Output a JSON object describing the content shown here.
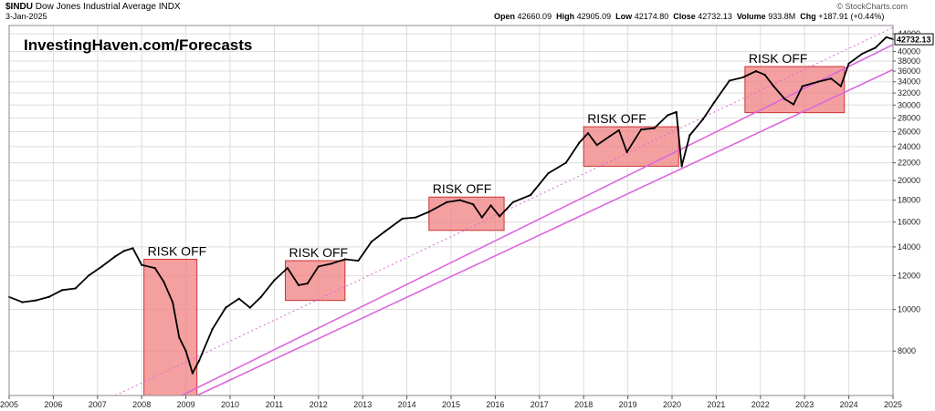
{
  "header": {
    "symbol": "$INDU",
    "name": "Dow Jones Industrial Average",
    "exchange": "INDX",
    "date": "3-Jan-2025",
    "open_label": "Open",
    "open": "42660.09",
    "high_label": "High",
    "high": "42905.09",
    "low_label": "Low",
    "low": "42174.80",
    "close_label": "Close",
    "close": "42732.13",
    "volume_label": "Volume",
    "volume": "933.8M",
    "chg_label": "Chg",
    "chg": "+187.91 (+0.44%)",
    "credit": "© StockCharts.com"
  },
  "watermark": "InvestingHaven.com/Forecasts",
  "colors": {
    "risk_fill": "#f08080",
    "risk_stroke": "#cc3333",
    "trendline": "#dd66dd",
    "candle": "#000000",
    "grid": "#dddddd"
  },
  "chart_data": {
    "type": "line",
    "title": "$INDU Dow Jones Industrial Average INDX",
    "yscale": "log",
    "xlim": [
      2005,
      2025
    ],
    "ylim": [
      6300,
      46000
    ],
    "x_ticks": [
      "2005",
      "2006",
      "2007",
      "2008",
      "2009",
      "2010",
      "2011",
      "2012",
      "2013",
      "2014",
      "2015",
      "2016",
      "2017",
      "2018",
      "2019",
      "2020",
      "2021",
      "2022",
      "2023",
      "2024",
      "2025"
    ],
    "y_ticks": [
      8000,
      10000,
      12000,
      14000,
      16000,
      18000,
      20000,
      22000,
      24000,
      26000,
      28000,
      30000,
      32000,
      34000,
      36000,
      38000,
      40000,
      44000
    ],
    "last_value": "42732.13",
    "series": [
      {
        "x": [
          2005.0,
          2005.3,
          2005.6,
          2005.9,
          2006.2,
          2006.5,
          2006.8,
          2007.1,
          2007.4,
          2007.6,
          2007.8,
          2008.0,
          2008.3,
          2008.5,
          2008.7,
          2008.85,
          2009.0,
          2009.15,
          2009.3,
          2009.6,
          2009.9,
          2010.2,
          2010.45,
          2010.7,
          2011.0,
          2011.3,
          2011.55,
          2011.75,
          2012.0,
          2012.3,
          2012.6,
          2012.9,
          2013.2,
          2013.5,
          2013.9,
          2014.2,
          2014.5,
          2014.9,
          2015.2,
          2015.5,
          2015.7,
          2015.9,
          2016.1,
          2016.4,
          2016.8,
          2017.2,
          2017.6,
          2017.9,
          2018.1,
          2018.3,
          2018.6,
          2018.8,
          2018.98,
          2019.3,
          2019.6,
          2019.9,
          2020.1,
          2020.22,
          2020.4,
          2020.7,
          2020.95,
          2021.3,
          2021.6,
          2021.9,
          2022.1,
          2022.3,
          2022.55,
          2022.75,
          2022.95,
          2023.3,
          2023.6,
          2023.82,
          2024.0,
          2024.3,
          2024.6,
          2024.85,
          2025.0
        ],
        "values": [
          10700,
          10400,
          10500,
          10700,
          11100,
          11200,
          12000,
          12600,
          13300,
          13700,
          13900,
          12700,
          12500,
          11600,
          10400,
          8600,
          8000,
          7100,
          7600,
          9000,
          10100,
          10600,
          10100,
          10700,
          11700,
          12500,
          11400,
          11500,
          12600,
          12800,
          13100,
          13000,
          14400,
          15200,
          16300,
          16400,
          16900,
          17800,
          18000,
          17600,
          16400,
          17500,
          16500,
          17800,
          18500,
          20800,
          22000,
          24500,
          25800,
          24200,
          25400,
          26200,
          23300,
          26300,
          26500,
          28400,
          28900,
          21600,
          25500,
          27800,
          30400,
          34200,
          34800,
          36000,
          35300,
          33200,
          31000,
          30100,
          33200,
          34000,
          34600,
          33200,
          37500,
          39500,
          40800,
          43200,
          42732
        ]
      }
    ],
    "annotations": [
      {
        "label": "RISK OFF",
        "x0": 2008.05,
        "x1": 2009.25,
        "y0": 6300,
        "y1": 13100
      },
      {
        "label": "RISK OFF",
        "x0": 2011.25,
        "x1": 2012.6,
        "y0": 10500,
        "y1": 13000
      },
      {
        "label": "RISK OFF",
        "x0": 2014.5,
        "x1": 2016.2,
        "y0": 15300,
        "y1": 18300
      },
      {
        "label": "RISK OFF",
        "x0": 2018.0,
        "x1": 2020.15,
        "y0": 21600,
        "y1": 26700
      },
      {
        "label": "RISK OFF",
        "x0": 2021.65,
        "x1": 2023.9,
        "y0": 28800,
        "y1": 36900
      }
    ],
    "trendlines": [
      {
        "style": "solid",
        "x0": 2008.9,
        "y0": 6300,
        "x1": 2025.0,
        "y1": 41500
      },
      {
        "style": "solid",
        "x0": 2009.25,
        "y0": 6300,
        "x1": 2025.0,
        "y1": 36300
      },
      {
        "style": "dotted",
        "x0": 2007.4,
        "y0": 6300,
        "x1": 2025.0,
        "y1": 45500
      }
    ]
  }
}
